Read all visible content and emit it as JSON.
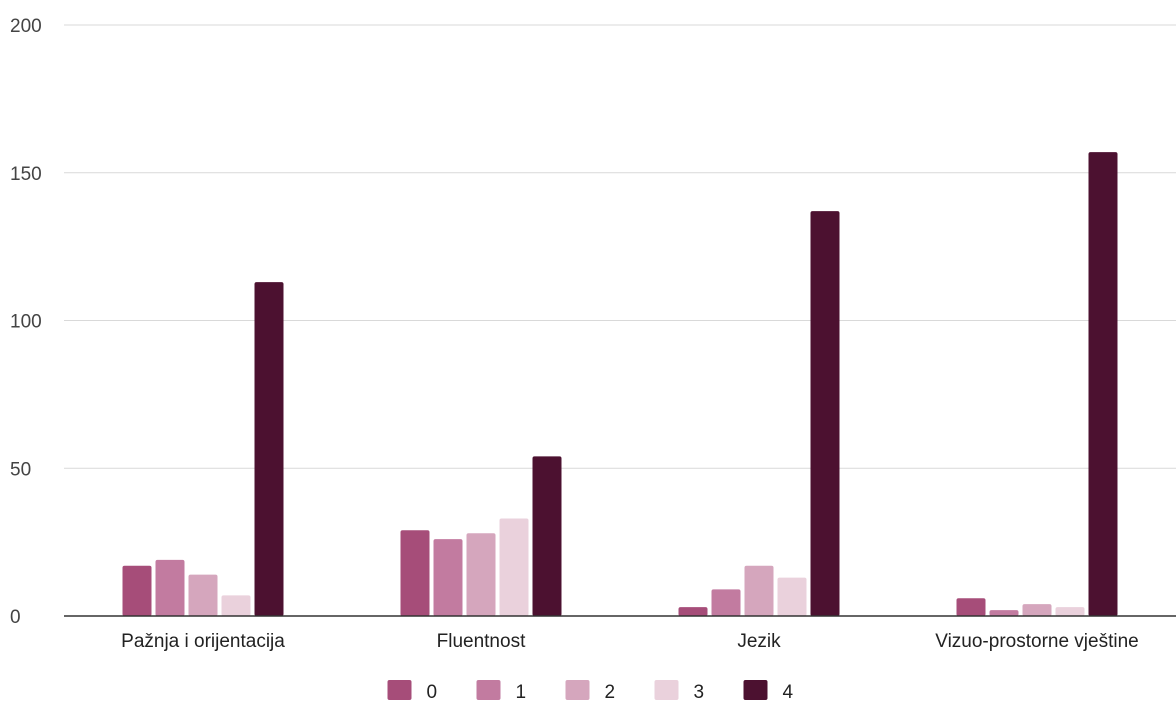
{
  "chart_data": {
    "type": "bar",
    "categories": [
      "Pažnja i orijentacija",
      "Fluentnost",
      "Jezik",
      "Vizuo-prostorne vještine"
    ],
    "series": [
      {
        "name": "0",
        "values": [
          17,
          29,
          3,
          6
        ],
        "color": "#a64d79"
      },
      {
        "name": "1",
        "values": [
          19,
          26,
          9,
          2
        ],
        "color": "#c27ba0"
      },
      {
        "name": "2",
        "values": [
          14,
          28,
          17,
          4
        ],
        "color": "#d5a6bd"
      },
      {
        "name": "3",
        "values": [
          7,
          33,
          13,
          3
        ],
        "color": "#ead1dc"
      },
      {
        "name": "4",
        "values": [
          113,
          54,
          137,
          157
        ],
        "color": "#4c1130"
      }
    ],
    "ylim": [
      0,
      200
    ],
    "yticks": [
      "0",
      "50",
      "100",
      "150",
      "200"
    ],
    "grid": true,
    "legend_position": "bottom"
  }
}
